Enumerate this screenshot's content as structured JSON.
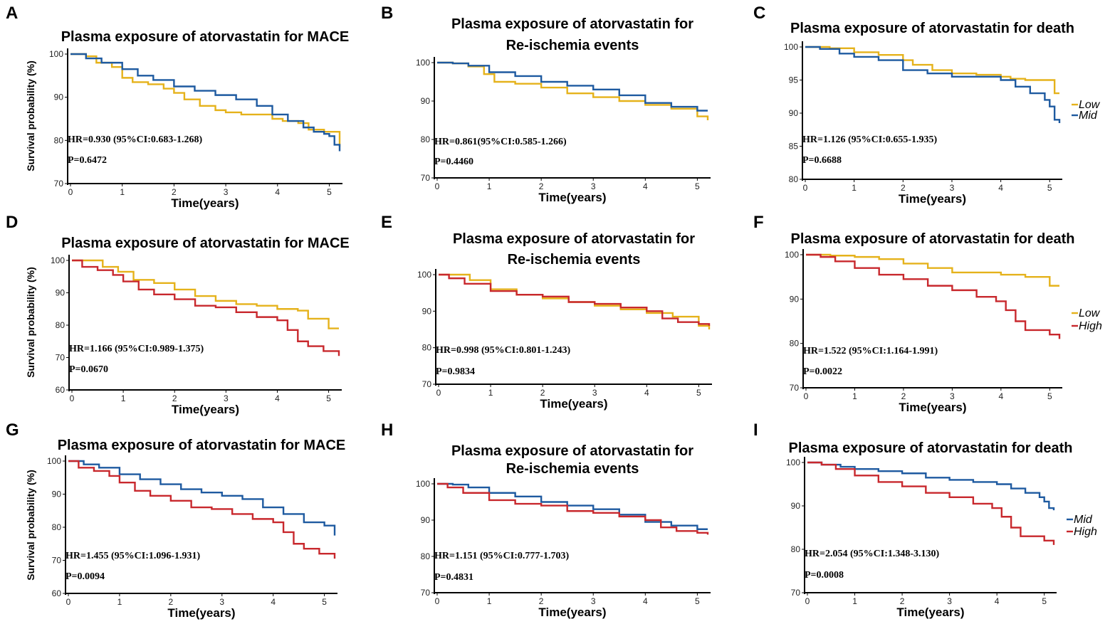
{
  "colors": {
    "Low": "#E5B21B",
    "Mid": "#1E5AA0",
    "High": "#C8282D"
  },
  "x_axis_label": "Time(years)",
  "y_axis_label": "Survival probability (%)",
  "chart_data": [
    {
      "type": "line",
      "letter": "A",
      "title": [
        "Plasma exposure of atorvastatin for MACE"
      ],
      "xlabel": "Time(years)",
      "ylabel": "Survival probability (%)",
      "xlim": [
        0,
        5.2
      ],
      "ylim": [
        70,
        100
      ],
      "xticks": [
        0,
        1,
        2,
        3,
        4,
        5
      ],
      "yticks": [
        70,
        80,
        90,
        100
      ],
      "hr": "HR=0.930 (95%CI:0.683-1.268)",
      "p": "P=0.6472",
      "legend": [],
      "series": [
        {
          "name": "Low",
          "color": "#E5B21B",
          "x": [
            0,
            0.3,
            0.5,
            0.8,
            1.0,
            1.2,
            1.5,
            1.8,
            2.0,
            2.2,
            2.5,
            2.8,
            3.0,
            3.3,
            3.6,
            3.9,
            4.1,
            4.4,
            4.6,
            4.9,
            5.2
          ],
          "y": [
            100,
            99.5,
            98,
            97,
            94.5,
            93.5,
            93,
            92,
            91,
            89.5,
            88,
            87,
            86.5,
            86,
            86,
            85,
            84.5,
            84,
            82.5,
            82,
            78.5
          ]
        },
        {
          "name": "Mid",
          "color": "#1E5AA0",
          "x": [
            0,
            0.3,
            0.6,
            1.0,
            1.3,
            1.6,
            2.0,
            2.4,
            2.8,
            3.2,
            3.6,
            3.9,
            4.2,
            4.5,
            4.7,
            4.9,
            5.0,
            5.1,
            5.2
          ],
          "y": [
            100,
            99,
            98,
            96.5,
            95,
            94,
            92.5,
            91.5,
            90.5,
            89.5,
            88,
            86,
            84.5,
            83,
            82,
            81.5,
            81,
            79,
            77.5
          ]
        }
      ]
    },
    {
      "type": "line",
      "letter": "B",
      "title": [
        "Plasma exposure of atorvastatin for",
        "Re-ischemia events"
      ],
      "xlabel": "Time(years)",
      "ylabel": "",
      "xlim": [
        0,
        5.2
      ],
      "ylim": [
        70,
        100
      ],
      "xticks": [
        0,
        1,
        2,
        3,
        4,
        5
      ],
      "yticks": [
        70,
        80,
        90,
        100
      ],
      "hr": "HR=0.861(95%CI:0.585-1.266)",
      "p": "P=0.4460",
      "legend": [],
      "series": [
        {
          "name": "Low",
          "color": "#E5B21B",
          "x": [
            0,
            0.3,
            0.6,
            0.9,
            1.1,
            1.5,
            2.0,
            2.5,
            3.0,
            3.5,
            4.0,
            4.5,
            5.0,
            5.2
          ],
          "y": [
            100,
            99.8,
            99,
            97,
            95,
            94.5,
            93.5,
            92,
            91,
            90,
            89,
            88,
            86,
            85
          ]
        },
        {
          "name": "Mid",
          "color": "#1E5AA0",
          "x": [
            0,
            0.3,
            0.6,
            1.0,
            1.5,
            2.0,
            2.5,
            3.0,
            3.5,
            4.0,
            4.5,
            5.0,
            5.2
          ],
          "y": [
            100,
            99.8,
            99.2,
            97.5,
            96.5,
            95,
            94,
            93,
            91.5,
            89.5,
            88.5,
            87.5,
            87.5
          ]
        }
      ]
    },
    {
      "type": "line",
      "letter": "C",
      "title": [
        "Plasma exposure of atorvastatin for death"
      ],
      "xlabel": "Time(years)",
      "ylabel": "",
      "xlim": [
        0,
        5.2
      ],
      "ylim": [
        80,
        100
      ],
      "xticks": [
        0,
        1,
        2,
        3,
        4,
        5
      ],
      "yticks": [
        80,
        85,
        90,
        95,
        100
      ],
      "hr": "HR=1.126 (95%CI:0.655-1.935)",
      "p": "P=0.6688",
      "legend": [
        "Low",
        "Mid"
      ],
      "series": [
        {
          "name": "Low",
          "color": "#E5B21B",
          "x": [
            0,
            0.5,
            1.0,
            1.5,
            2.0,
            2.2,
            2.6,
            3.0,
            3.5,
            4.0,
            4.2,
            4.5,
            5.0,
            5.1,
            5.2
          ],
          "y": [
            100,
            99.8,
            99.2,
            98.8,
            98,
            97.3,
            96.5,
            96,
            95.8,
            95.5,
            95.2,
            95,
            95,
            93,
            93
          ]
        },
        {
          "name": "Mid",
          "color": "#1E5AA0",
          "x": [
            0,
            0.3,
            0.7,
            1.0,
            1.5,
            2.0,
            2.5,
            3.0,
            3.5,
            4.0,
            4.3,
            4.6,
            4.9,
            5.0,
            5.1,
            5.2
          ],
          "y": [
            100,
            99.7,
            99,
            98.5,
            98,
            96.5,
            96,
            95.5,
            95.5,
            95,
            94,
            93,
            92,
            91,
            89,
            88.5
          ]
        }
      ]
    },
    {
      "type": "line",
      "letter": "D",
      "title": [
        "Plasma exposure of atorvastatin for MACE"
      ],
      "xlabel": "Time(years)",
      "ylabel": "Survival probability (%)",
      "xlim": [
        0,
        5.2
      ],
      "ylim": [
        60,
        100
      ],
      "xticks": [
        0,
        1,
        2,
        3,
        4,
        5
      ],
      "yticks": [
        60,
        70,
        80,
        90,
        100
      ],
      "hr": "HR=1.166 (95%CI:0.989-1.375)",
      "p": "P=0.0670",
      "legend": [],
      "series": [
        {
          "name": "Low",
          "color": "#E5B21B",
          "x": [
            0,
            0.3,
            0.6,
            0.9,
            1.2,
            1.6,
            2.0,
            2.4,
            2.8,
            3.2,
            3.6,
            4.0,
            4.4,
            4.6,
            5.0,
            5.2
          ],
          "y": [
            100,
            100,
            98,
            96.5,
            94,
            93,
            91,
            89,
            87.5,
            86.5,
            86,
            85,
            84.5,
            82,
            79,
            79
          ]
        },
        {
          "name": "Mid",
          "color": "#1E5AA0",
          "x": [],
          "y": []
        },
        {
          "name": "High",
          "color": "#C8282D",
          "x": [
            0,
            0.2,
            0.5,
            0.8,
            1.0,
            1.3,
            1.6,
            2.0,
            2.4,
            2.8,
            3.2,
            3.6,
            4.0,
            4.2,
            4.4,
            4.6,
            4.9,
            5.2
          ],
          "y": [
            100,
            98,
            97,
            95.5,
            93.5,
            91,
            89.5,
            88,
            86,
            85.5,
            84,
            82.5,
            81.5,
            78.5,
            75,
            73.5,
            72,
            70.5
          ]
        }
      ]
    },
    {
      "type": "line",
      "letter": "E",
      "title": [
        "Plasma exposure of atorvastatin for",
        "Re-ischemia events"
      ],
      "xlabel": "Time(years)",
      "ylabel": "",
      "xlim": [
        0,
        5.2
      ],
      "ylim": [
        70,
        100
      ],
      "xticks": [
        0,
        1,
        2,
        3,
        4,
        5
      ],
      "yticks": [
        70,
        80,
        90,
        100
      ],
      "hr": "HR=0.998 (95%CI:0.801-1.243)",
      "p": "P=0.9834",
      "legend": [],
      "series": [
        {
          "name": "Low",
          "color": "#E5B21B",
          "x": [
            0,
            0.3,
            0.6,
            1.0,
            1.5,
            2.0,
            2.5,
            3.0,
            3.5,
            4.0,
            4.5,
            5.0,
            5.2
          ],
          "y": [
            100,
            100,
            98.5,
            96,
            94.5,
            93.5,
            92.5,
            91.5,
            90.5,
            89.5,
            88.5,
            86,
            85
          ]
        },
        {
          "name": "High",
          "color": "#C8282D",
          "x": [
            0,
            0.2,
            0.5,
            1.0,
            1.5,
            2.0,
            2.5,
            3.0,
            3.5,
            4.0,
            4.3,
            4.6,
            5.0,
            5.2
          ],
          "y": [
            100,
            99,
            97.5,
            95.5,
            94.5,
            94,
            92.5,
            92,
            91,
            90,
            88,
            87,
            86.5,
            86
          ]
        }
      ]
    },
    {
      "type": "line",
      "letter": "F",
      "title": [
        "Plasma exposure of atorvastatin for death"
      ],
      "xlabel": "Time(years)",
      "ylabel": "",
      "xlim": [
        0,
        5.2
      ],
      "ylim": [
        70,
        100
      ],
      "xticks": [
        0,
        1,
        2,
        3,
        4,
        5
      ],
      "yticks": [
        70,
        80,
        90,
        100
      ],
      "hr": "HR=1.522 (95%CI:1.164-1.991)",
      "p": "P=0.0022",
      "legend": [
        "Low",
        "High"
      ],
      "series": [
        {
          "name": "Low",
          "color": "#E5B21B",
          "x": [
            0,
            0.5,
            1.0,
            1.5,
            2.0,
            2.5,
            3.0,
            3.5,
            4.0,
            4.5,
            5.0,
            5.2
          ],
          "y": [
            100,
            99.8,
            99.5,
            99,
            98,
            97,
            96,
            96,
            95.5,
            95,
            93,
            93
          ]
        },
        {
          "name": "High",
          "color": "#C8282D",
          "x": [
            0,
            0.3,
            0.6,
            1.0,
            1.5,
            2.0,
            2.5,
            3.0,
            3.5,
            3.9,
            4.1,
            4.3,
            4.5,
            5.0,
            5.2
          ],
          "y": [
            100,
            99.5,
            98.5,
            97,
            95.5,
            94.5,
            93,
            92,
            90.5,
            89.5,
            87.5,
            85,
            83,
            82,
            81
          ]
        }
      ]
    },
    {
      "type": "line",
      "letter": "G",
      "title": [
        "Plasma exposure of atorvastatin for MACE"
      ],
      "xlabel": "Time(years)",
      "ylabel": "Survival probability (%)",
      "xlim": [
        0,
        5.2
      ],
      "ylim": [
        60,
        100
      ],
      "xticks": [
        0,
        1,
        2,
        3,
        4,
        5
      ],
      "yticks": [
        60,
        70,
        80,
        90,
        100
      ],
      "hr": "HR=1.455 (95%CI:1.096-1.931)",
      "p": "P=0.0094",
      "legend": [],
      "series": [
        {
          "name": "Mid",
          "color": "#1E5AA0",
          "x": [
            0,
            0.3,
            0.6,
            1.0,
            1.4,
            1.8,
            2.2,
            2.6,
            3.0,
            3.4,
            3.8,
            4.2,
            4.6,
            5.0,
            5.2
          ],
          "y": [
            100,
            99,
            98,
            96,
            94.5,
            93,
            91.5,
            90.5,
            89.5,
            88.5,
            86,
            84,
            81.5,
            80.5,
            77.5
          ]
        },
        {
          "name": "High",
          "color": "#C8282D",
          "x": [
            0,
            0.2,
            0.5,
            0.8,
            1.0,
            1.3,
            1.6,
            2.0,
            2.4,
            2.8,
            3.2,
            3.6,
            4.0,
            4.2,
            4.4,
            4.6,
            4.9,
            5.2
          ],
          "y": [
            100,
            98,
            97,
            95.5,
            93.5,
            91,
            89.5,
            88,
            86,
            85.5,
            84,
            82.5,
            81.5,
            78.5,
            75,
            73.5,
            72,
            70.5
          ]
        }
      ]
    },
    {
      "type": "line",
      "letter": "H",
      "title": [
        "Plasma exposure of atorvastatin for",
        "Re-ischemia events"
      ],
      "xlabel": "Time(years)",
      "ylabel": "",
      "xlim": [
        0,
        5.2
      ],
      "ylim": [
        70,
        100
      ],
      "xticks": [
        0,
        1,
        2,
        3,
        4,
        5
      ],
      "yticks": [
        70,
        80,
        90,
        100
      ],
      "hr": "HR=1.151 (95%CI:0.777-1.703)",
      "p": "P=0.4831",
      "legend": [],
      "series": [
        {
          "name": "Mid",
          "color": "#1E5AA0",
          "x": [
            0,
            0.3,
            0.6,
            1.0,
            1.5,
            2.0,
            2.5,
            3.0,
            3.5,
            4.0,
            4.5,
            5.0,
            5.2
          ],
          "y": [
            100,
            99.8,
            99,
            97.5,
            96.5,
            95,
            94,
            93,
            91.5,
            89.5,
            88.5,
            87.5,
            87.5
          ]
        },
        {
          "name": "High",
          "color": "#C8282D",
          "x": [
            0,
            0.2,
            0.5,
            1.0,
            1.5,
            2.0,
            2.5,
            3.0,
            3.5,
            4.0,
            4.3,
            4.6,
            5.0,
            5.2
          ],
          "y": [
            100,
            99,
            97.5,
            95.5,
            94.5,
            94,
            92.5,
            92,
            91,
            90,
            88,
            87,
            86.5,
            86
          ]
        }
      ]
    },
    {
      "type": "line",
      "letter": "I",
      "title": [
        "Plasma exposure of atorvastatin for death"
      ],
      "xlabel": "Time(years)",
      "ylabel": "",
      "xlim": [
        0,
        5.2
      ],
      "ylim": [
        70,
        100
      ],
      "xticks": [
        0,
        1,
        2,
        3,
        4,
        5
      ],
      "yticks": [
        70,
        80,
        90,
        100
      ],
      "hr": "HR=2.054 (95%CI:1.348-3.130)",
      "p": "P=0.0008",
      "legend": [
        "Mid",
        "High"
      ],
      "series": [
        {
          "name": "Mid",
          "color": "#1E5AA0",
          "x": [
            0,
            0.3,
            0.7,
            1.0,
            1.5,
            2.0,
            2.5,
            3.0,
            3.5,
            4.0,
            4.3,
            4.6,
            4.9,
            5.0,
            5.1,
            5.2
          ],
          "y": [
            100,
            99.5,
            99,
            98.5,
            98,
            97.5,
            96.5,
            96,
            95.5,
            95,
            94,
            93,
            92,
            91,
            89.5,
            89
          ]
        },
        {
          "name": "High",
          "color": "#C8282D",
          "x": [
            0,
            0.3,
            0.6,
            1.0,
            1.5,
            2.0,
            2.5,
            3.0,
            3.5,
            3.9,
            4.1,
            4.3,
            4.5,
            5.0,
            5.2
          ],
          "y": [
            100,
            99.5,
            98.5,
            97,
            95.5,
            94.5,
            93,
            92,
            90.5,
            89.5,
            87.5,
            85,
            83,
            82,
            81
          ]
        }
      ]
    }
  ]
}
